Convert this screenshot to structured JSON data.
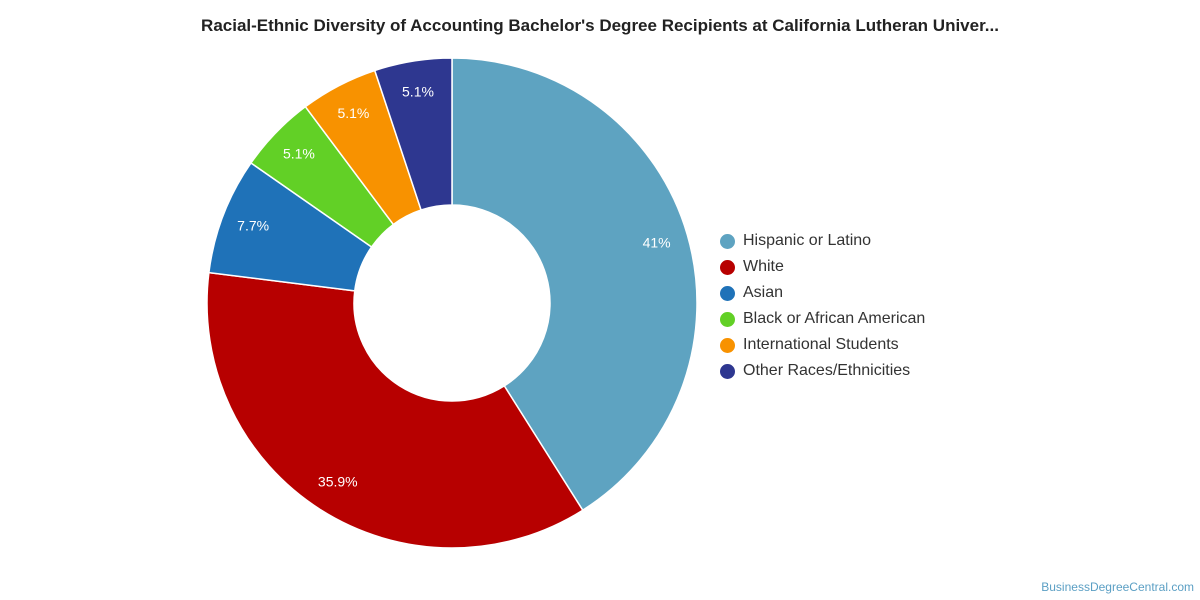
{
  "chart_data": {
    "type": "pie",
    "title": "Racial-Ethnic Diversity of Accounting Bachelor's Degree Recipients at California Lutheran Univer...",
    "donut": true,
    "legend_position": "right",
    "series": [
      {
        "name": "Hispanic or Latino",
        "value": 41,
        "label": "41%",
        "color": "#5ea3c1"
      },
      {
        "name": "White",
        "value": 35.9,
        "label": "35.9%",
        "color": "#b70000"
      },
      {
        "name": "Asian",
        "value": 7.7,
        "label": "7.7%",
        "color": "#1f72b8"
      },
      {
        "name": "Black or African American",
        "value": 5.1,
        "label": "5.1%",
        "color": "#62d026"
      },
      {
        "name": "International Students",
        "value": 5.1,
        "label": "5.1%",
        "color": "#f89200"
      },
      {
        "name": "Other Races/Ethnicities",
        "value": 5.1,
        "label": "5.1%",
        "color": "#2e3790"
      }
    ]
  },
  "source_text": "BusinessDegreeCentral.com"
}
